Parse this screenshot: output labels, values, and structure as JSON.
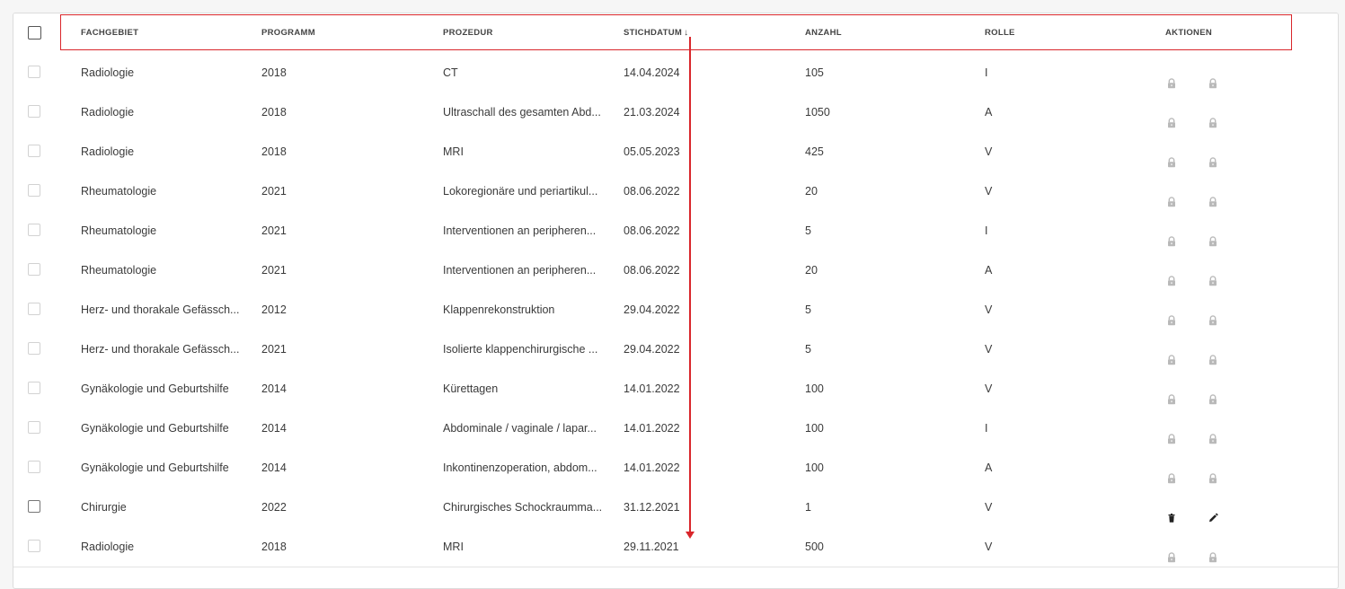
{
  "table": {
    "columns": {
      "fachgebiet": "FACHGEBIET",
      "programm": "PROGRAMM",
      "prozedur": "PROZEDUR",
      "stichdatum": "STICHDATUM",
      "stichdatum_sort": "↓",
      "anzahl": "ANZAHL",
      "rolle": "ROLLE",
      "aktionen": "AKTIONEN"
    },
    "rows": [
      {
        "fachgebiet": "Radiologie",
        "programm": "2018",
        "prozedur": "CT",
        "stichdatum": "14.04.2024",
        "anzahl": "105",
        "rolle": "I",
        "actions": [
          "lock-icon",
          "lock-icon"
        ]
      },
      {
        "fachgebiet": "Radiologie",
        "programm": "2018",
        "prozedur": "Ultraschall des gesamten Abd...",
        "stichdatum": "21.03.2024",
        "anzahl": "1050",
        "rolle": "A",
        "actions": [
          "lock-icon",
          "lock-icon"
        ]
      },
      {
        "fachgebiet": "Radiologie",
        "programm": "2018",
        "prozedur": "MRI",
        "stichdatum": "05.05.2023",
        "anzahl": "425",
        "rolle": "V",
        "actions": [
          "lock-icon",
          "lock-icon"
        ]
      },
      {
        "fachgebiet": "Rheumatologie",
        "programm": "2021",
        "prozedur": "Lokoregionäre und periartikul...",
        "stichdatum": "08.06.2022",
        "anzahl": "20",
        "rolle": "V",
        "actions": [
          "lock-icon",
          "lock-icon"
        ]
      },
      {
        "fachgebiet": "Rheumatologie",
        "programm": "2021",
        "prozedur": "Interventionen an peripheren...",
        "stichdatum": "08.06.2022",
        "anzahl": "5",
        "rolle": "I",
        "actions": [
          "lock-icon",
          "lock-icon"
        ]
      },
      {
        "fachgebiet": "Rheumatologie",
        "programm": "2021",
        "prozedur": "Interventionen an peripheren...",
        "stichdatum": "08.06.2022",
        "anzahl": "20",
        "rolle": "A",
        "actions": [
          "lock-icon",
          "lock-icon"
        ]
      },
      {
        "fachgebiet": "Herz- und thorakale Gefässch...",
        "programm": "2012",
        "prozedur": "Klappenrekonstruktion",
        "stichdatum": "29.04.2022",
        "anzahl": "5",
        "rolle": "V",
        "actions": [
          "lock-icon",
          "lock-icon"
        ]
      },
      {
        "fachgebiet": "Herz- und thorakale Gefässch...",
        "programm": "2021",
        "prozedur": "Isolierte klappenchirurgische ...",
        "stichdatum": "29.04.2022",
        "anzahl": "5",
        "rolle": "V",
        "actions": [
          "lock-icon",
          "lock-icon"
        ]
      },
      {
        "fachgebiet": "Gynäkologie und Geburtshilfe",
        "programm": "2014",
        "prozedur": "Kürettagen",
        "stichdatum": "14.01.2022",
        "anzahl": "100",
        "rolle": "V",
        "actions": [
          "lock-icon",
          "lock-icon"
        ]
      },
      {
        "fachgebiet": "Gynäkologie und Geburtshilfe",
        "programm": "2014",
        "prozedur": "Abdominale / vaginale / lapar...",
        "stichdatum": "14.01.2022",
        "anzahl": "100",
        "rolle": "I",
        "actions": [
          "lock-icon",
          "lock-icon"
        ]
      },
      {
        "fachgebiet": "Gynäkologie und Geburtshilfe",
        "programm": "2014",
        "prozedur": "Inkontinenzoperation, abdom...",
        "stichdatum": "14.01.2022",
        "anzahl": "100",
        "rolle": "A",
        "actions": [
          "lock-icon",
          "lock-icon"
        ]
      },
      {
        "fachgebiet": "Chirurgie",
        "programm": "2022",
        "prozedur": "Chirurgisches Schockraumma...",
        "stichdatum": "31.12.2021",
        "anzahl": "1",
        "rolle": "V",
        "actions": [
          "trash-icon",
          "pencil-icon"
        ]
      },
      {
        "fachgebiet": "Radiologie",
        "programm": "2018",
        "prozedur": "MRI",
        "stichdatum": "29.11.2021",
        "anzahl": "500",
        "rolle": "V",
        "actions": [
          "lock-icon",
          "lock-icon"
        ]
      }
    ]
  },
  "colors": {
    "annotation": "#d9262b",
    "lock_icon": "#b9b9b9",
    "active_icon": "#222222"
  }
}
